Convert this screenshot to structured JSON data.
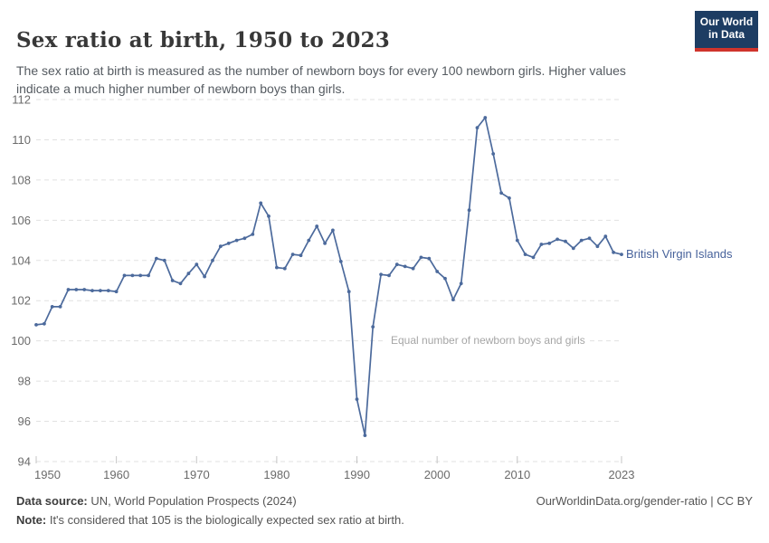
{
  "header": {
    "title": "Sex ratio at birth, 1950 to 2023",
    "subtitle": "The sex ratio at birth is measured as the number of newborn boys for every 100 newborn girls. Higher values indicate a much higher number of newborn boys than girls.",
    "logo": {
      "line1": "Our World",
      "line2": "in Data"
    }
  },
  "chart_data": {
    "type": "line",
    "title": "Sex ratio at birth, 1950 to 2023",
    "xlabel": "",
    "ylabel": "",
    "ylim": [
      94,
      112
    ],
    "xlim": [
      1950,
      2023
    ],
    "yticks": [
      94,
      96,
      98,
      100,
      102,
      104,
      106,
      108,
      110,
      112
    ],
    "xticks": [
      1950,
      1960,
      1970,
      1980,
      1990,
      2000,
      2010,
      2023
    ],
    "grid": "horizontal-dashed",
    "legend_position": "end-of-line-label",
    "annotation": "Equal number of newborn boys and girls",
    "annotation_y": 100,
    "series": [
      {
        "name": "British Virgin Islands",
        "color": "#4c6a9c",
        "x": [
          1950,
          1951,
          1952,
          1953,
          1954,
          1955,
          1956,
          1957,
          1958,
          1959,
          1960,
          1961,
          1962,
          1963,
          1964,
          1965,
          1966,
          1967,
          1968,
          1969,
          1970,
          1971,
          1972,
          1973,
          1974,
          1975,
          1976,
          1977,
          1978,
          1979,
          1980,
          1981,
          1982,
          1983,
          1984,
          1985,
          1986,
          1987,
          1988,
          1989,
          1990,
          1991,
          1992,
          1993,
          1994,
          1995,
          1996,
          1997,
          1998,
          1999,
          2000,
          2001,
          2002,
          2003,
          2004,
          2005,
          2006,
          2007,
          2008,
          2009,
          2010,
          2011,
          2012,
          2013,
          2014,
          2015,
          2016,
          2017,
          2018,
          2019,
          2020,
          2021,
          2022,
          2023
        ],
        "values": [
          100.8,
          100.85,
          101.7,
          101.7,
          102.55,
          102.55,
          102.55,
          102.5,
          102.5,
          102.5,
          102.45,
          103.25,
          103.25,
          103.25,
          103.25,
          104.1,
          104.0,
          103.0,
          102.85,
          103.35,
          103.8,
          103.2,
          104.0,
          104.7,
          104.85,
          105.0,
          105.1,
          105.3,
          106.85,
          106.2,
          103.65,
          103.6,
          104.3,
          104.25,
          105.0,
          105.7,
          104.85,
          105.5,
          103.95,
          102.45,
          97.1,
          95.3,
          100.7,
          103.3,
          103.25,
          103.8,
          103.7,
          103.6,
          104.15,
          104.1,
          103.45,
          103.1,
          102.05,
          102.85,
          106.5,
          110.6,
          111.1,
          109.3,
          107.35,
          107.1,
          105.0,
          104.3,
          104.15,
          104.8,
          104.85,
          105.05,
          104.95,
          104.6,
          105.0,
          105.1,
          104.7,
          105.2,
          104.4,
          104.3
        ]
      }
    ]
  },
  "footer": {
    "data_source_label": "Data source:",
    "data_source_value": " UN, World Population Prospects (2024)",
    "link": "OurWorldinData.org/gender-ratio | CC BY",
    "note_label": "Note:",
    "note_value": " It's considered that 105 is the biologically expected sex ratio at birth."
  },
  "colors": {
    "line": "#4c6a9c",
    "gridline": "#e1e1e1",
    "axis_tick": "#c4c4c4",
    "axis_text": "#6b6b6b",
    "annotation_text": "#a6a6a6",
    "logo_bg": "#1d3d63",
    "logo_red": "#cf342c"
  }
}
